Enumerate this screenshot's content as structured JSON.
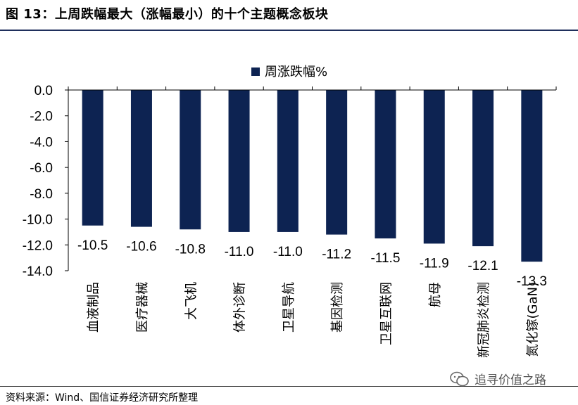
{
  "figure": {
    "title": "图 13：上周跌幅最大（涨幅最小）的十个主题概念板块",
    "source": "资料来源：Wind、国信证券经济研究所整理",
    "watermark": "追寻价值之路"
  },
  "colors": {
    "bar": "#0d2352",
    "rule": "#1f2f5c"
  },
  "chart_data": {
    "type": "bar",
    "title": "",
    "xlabel": "",
    "ylabel": "",
    "ylim": [
      -14,
      0
    ],
    "yticks": [
      0,
      -2,
      -4,
      -6,
      -8,
      -10,
      -12,
      -14
    ],
    "ytick_labels": [
      "0.0",
      "-2.0",
      "-4.0",
      "-6.0",
      "-8.0",
      "-10.0",
      "-12.0",
      "-14.0"
    ],
    "legend": "top-center",
    "grid": false,
    "categories": [
      "血液制品",
      "医疗器械",
      "大飞机",
      "体外诊断",
      "卫星导航",
      "基因检测",
      "卫星互联网",
      "航母",
      "新冠肺炎检测",
      "氮化镓(GaN)"
    ],
    "series": [
      {
        "name": "周涨跌幅%",
        "values": [
          -10.5,
          -10.6,
          -10.8,
          -11.0,
          -11.0,
          -11.2,
          -11.5,
          -11.9,
          -12.1,
          -13.3
        ]
      }
    ],
    "data_labels": [
      "-10.5",
      "-10.6",
      "-10.8",
      "-11.0",
      "-11.0",
      "-11.2",
      "-11.5",
      "-11.9",
      "-12.1",
      "-13.3"
    ]
  }
}
